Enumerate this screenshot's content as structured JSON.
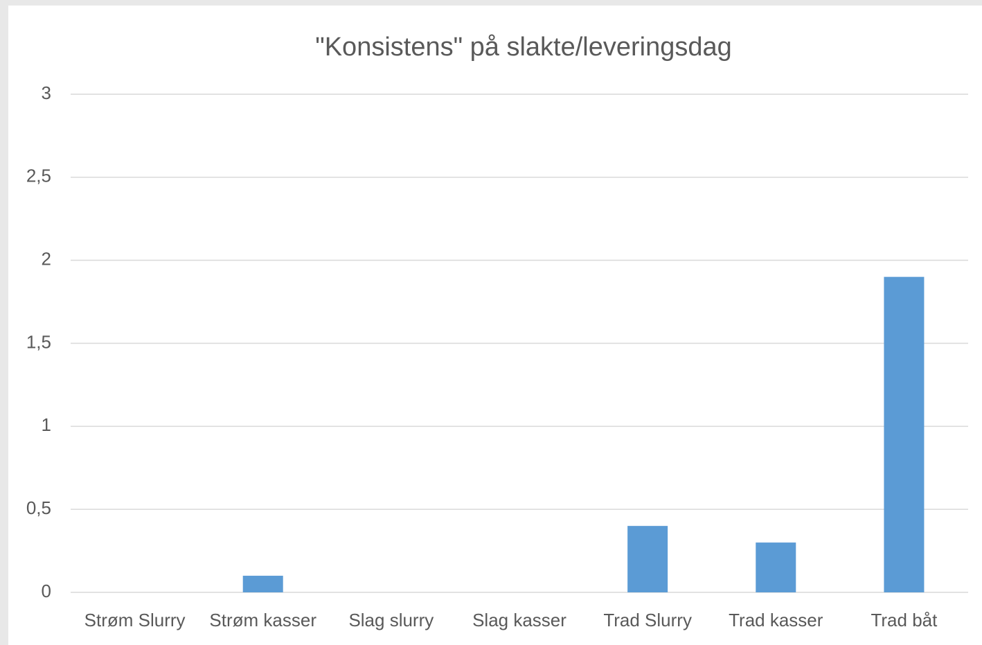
{
  "chart_data": {
    "type": "bar",
    "title": "\"Konsistens\" på slakte/leveringsdag",
    "categories": [
      "Strøm Slurry",
      "Strøm kasser",
      "Slag slurry",
      "Slag kasser",
      "Trad Slurry",
      "Trad kasser",
      "Trad båt"
    ],
    "values": [
      0,
      0.1,
      0,
      0,
      0.4,
      0.3,
      1.9
    ],
    "color": "#5b9bd5",
    "ylim": [
      0,
      3
    ],
    "yticks": [
      0,
      {
        "value": 0.5,
        "label": "0,5"
      },
      1,
      {
        "value": 1.5,
        "label": "1,5"
      },
      2,
      {
        "value": 2.5,
        "label": "2,5"
      },
      3
    ],
    "grid": true
  }
}
